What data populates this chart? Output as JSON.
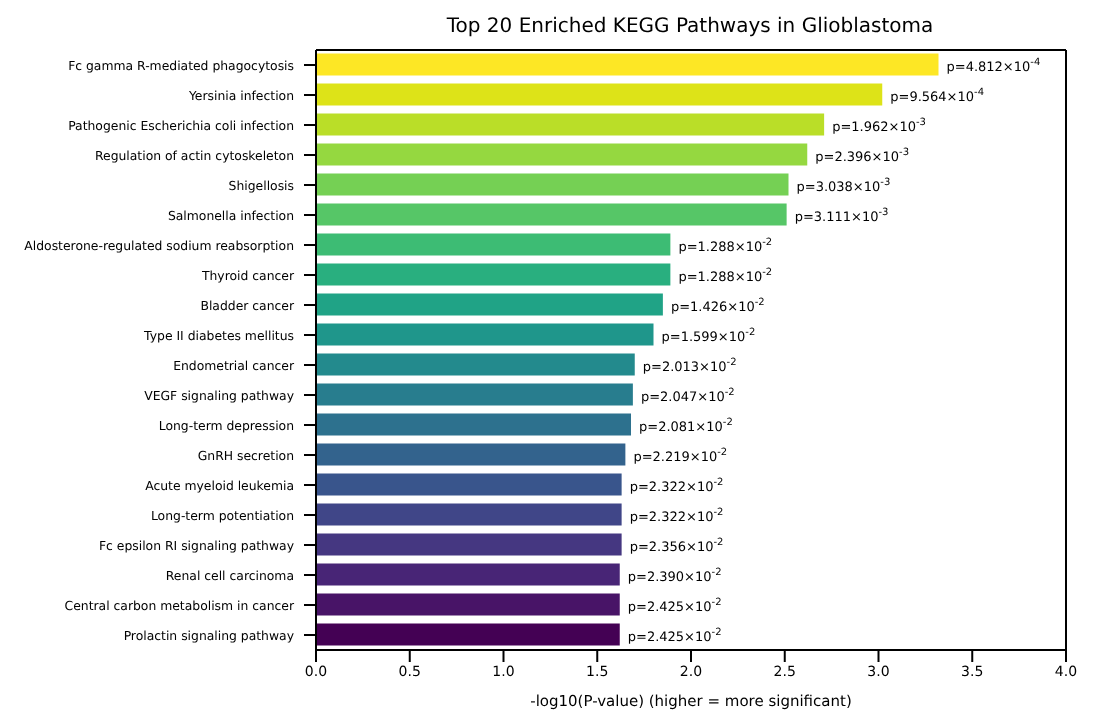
{
  "chart_data": {
    "type": "bar",
    "orientation": "horizontal",
    "title": "Top 20 Enriched KEGG Pathways in Glioblastoma",
    "xlabel": "-log10(P-value) (higher = more significant)",
    "categories": [
      "Fc gamma R-mediated phagocytosis",
      "Yersinia infection",
      "Pathogenic Escherichia coli infection",
      "Regulation of actin cytoskeleton",
      "Shigellosis",
      "Salmonella infection",
      "Aldosterone-regulated sodium reabsorption",
      "Thyroid cancer",
      "Bladder cancer",
      "Type II diabetes mellitus",
      "Endometrial cancer",
      "VEGF signaling pathway",
      "Long-term depression",
      "GnRH secretion",
      "Acute myeloid leukemia",
      "Long-term potentiation",
      "Fc epsilon RI signaling pathway",
      "Renal cell carcinoma",
      "Central carbon metabolism in cancer",
      "Prolactin signaling pathway"
    ],
    "values": [
      3.32,
      3.02,
      2.71,
      2.62,
      2.52,
      2.51,
      1.89,
      1.89,
      1.85,
      1.8,
      1.7,
      1.69,
      1.68,
      1.65,
      1.63,
      1.63,
      1.63,
      1.62,
      1.62,
      1.62
    ],
    "colors": [
      "#fde725",
      "#dde318",
      "#bade28",
      "#95d840",
      "#75d054",
      "#56c667",
      "#3dbc74",
      "#29af7f",
      "#20a386",
      "#1f968b",
      "#238a8d",
      "#287d8e",
      "#2d718e",
      "#33638d",
      "#39558c",
      "#404688",
      "#453781",
      "#482576",
      "#481467",
      "#440154"
    ],
    "value_labels": [
      "p=4.812×10$^{-4}$",
      "p=9.564×10$^{-4}$",
      "p=1.962×10$^{-3}$",
      "p=2.396×10$^{-3}$",
      "p=3.038×10$^{-3}$",
      "p=3.111×10$^{-3}$",
      "p=1.288×10$^{-2}$",
      "p=1.288×10$^{-2}$",
      "p=1.426×10$^{-2}$",
      "p=1.599×10$^{-2}$",
      "p=2.013×10$^{-2}$",
      "p=2.047×10$^{-2}$",
      "p=2.081×10$^{-2}$",
      "p=2.219×10$^{-2}$",
      "p=2.322×10$^{-2}$",
      "p=2.322×10$^{-2}$",
      "p=2.356×10$^{-2}$",
      "p=2.390×10$^{-2}$",
      "p=2.425×10$^{-2}$",
      "p=2.425×10$^{-2}$"
    ],
    "xlim": [
      0,
      4
    ],
    "xticks": [
      {
        "value": 0,
        "label": "0.0"
      },
      {
        "value": 0.5,
        "label": "0.5"
      },
      {
        "value": 1,
        "label": "1.0"
      },
      {
        "value": 1.5,
        "label": "1.5"
      },
      {
        "value": 2,
        "label": "2.0"
      },
      {
        "value": 2.5,
        "label": "2.5"
      },
      {
        "value": 3,
        "label": "3.0"
      },
      {
        "value": 3.5,
        "label": "3.5"
      },
      {
        "value": 4,
        "label": "4.0"
      }
    ],
    "grid": false
  }
}
